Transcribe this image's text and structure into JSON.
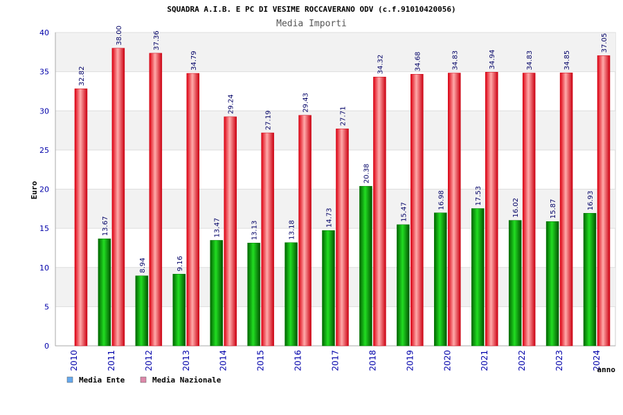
{
  "chart_data": {
    "type": "bar",
    "title": "SQUADRA A.I.B. E PC DI VESIME ROCCAVERANO ODV (c.f.91010420056)",
    "subtitle": "Media Importi",
    "xlabel": "anno",
    "ylabel": "Euro",
    "ylim": [
      0,
      40
    ],
    "yticks": [
      0,
      5,
      10,
      15,
      20,
      25,
      30,
      35,
      40
    ],
    "grid": true,
    "legend": "bottom-left",
    "categories": [
      "2010",
      "2011",
      "2012",
      "2013",
      "2014",
      "2015",
      "2016",
      "2017",
      "2018",
      "2019",
      "2020",
      "2021",
      "2022",
      "2023",
      "2024"
    ],
    "series": [
      {
        "name": "Media Ente",
        "color": "#00aa00",
        "legend_color": "#66aaee",
        "values": [
          null,
          13.67,
          8.94,
          9.16,
          13.47,
          13.13,
          13.18,
          14.73,
          20.38,
          15.47,
          16.98,
          17.53,
          16.02,
          15.87,
          16.93
        ],
        "labels": [
          null,
          "13.67",
          "8.94",
          "9.16",
          "13.47",
          "13.13",
          "13.18",
          "14.73",
          "20.38",
          "15.47",
          "16.98",
          "17.53",
          "16.02",
          "15.87",
          "16.93"
        ]
      },
      {
        "name": "Media Nazionale",
        "color": "#ee1122",
        "legend_color": "#dd88aa",
        "values": [
          32.82,
          38.0,
          37.36,
          34.79,
          29.24,
          27.19,
          29.43,
          27.71,
          34.32,
          34.68,
          34.83,
          34.94,
          34.83,
          34.85,
          37.05
        ],
        "labels": [
          "32.82",
          "38.00",
          "37.36",
          "34.79",
          "29.24",
          "27.19",
          "29.43",
          "27.71",
          "34.32",
          "34.68",
          "34.83",
          "34.94",
          "34.83",
          "34.85",
          "37.05"
        ]
      }
    ]
  }
}
